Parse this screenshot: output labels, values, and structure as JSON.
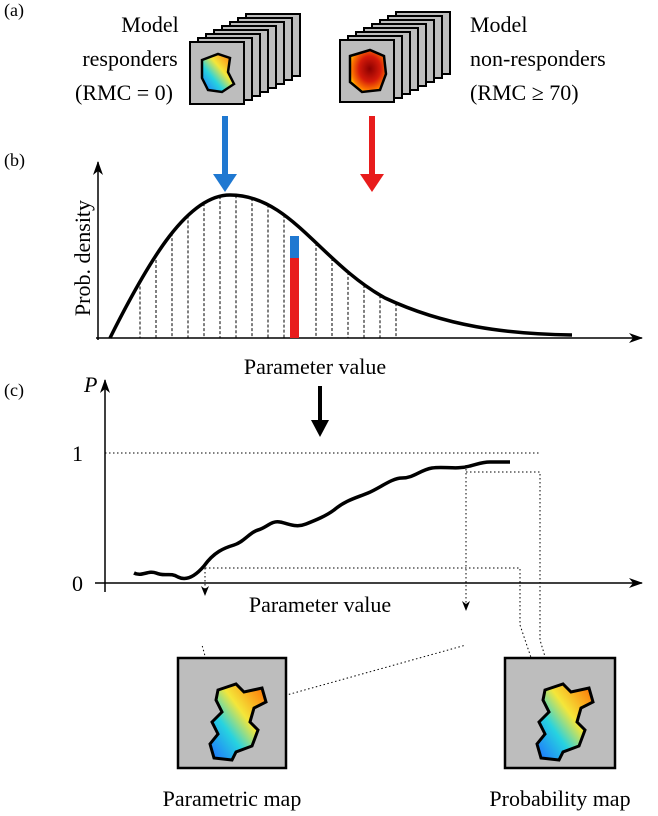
{
  "panel_a": {
    "label": "(a)",
    "responders": [
      "Model",
      "responders",
      "(RMC = 0)"
    ],
    "non_responders": [
      "Model",
      "non-responders",
      "(RMC ≥ 70)"
    ]
  },
  "panel_b": {
    "label": "(b)",
    "y_label": "Prob. density",
    "x_label": "Parameter value"
  },
  "panel_c": {
    "label": "(c)",
    "y_label": "P",
    "y_ticks": [
      "1",
      "0"
    ],
    "x_label": "Parameter value",
    "maps": [
      "Parametric map",
      "Probability map"
    ]
  }
}
